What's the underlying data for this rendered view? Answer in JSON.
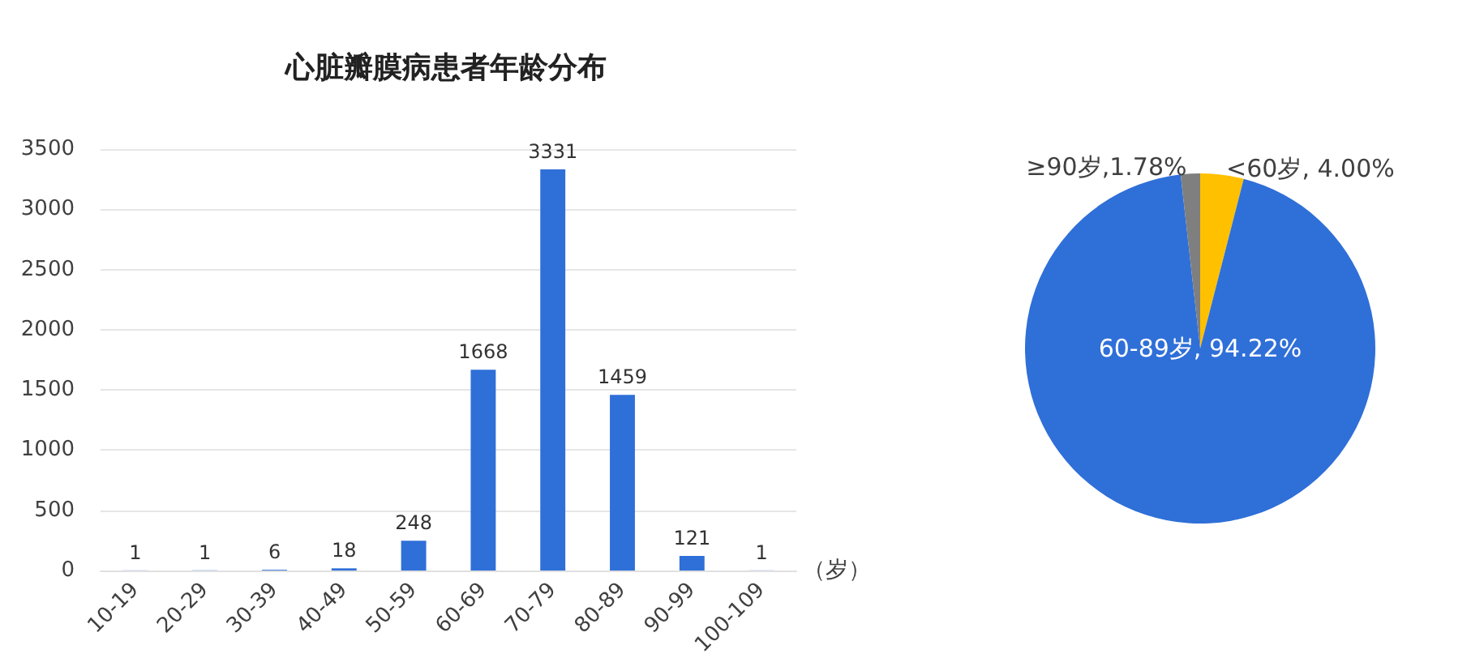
{
  "chart_data": [
    {
      "type": "bar",
      "title": "心脏瓣膜病患者年龄分布",
      "xlabel": "（岁）",
      "categories": [
        "10-19",
        "20-29",
        "30-39",
        "40-49",
        "50-59",
        "60-69",
        "70-79",
        "80-89",
        "90-99",
        "100-109"
      ],
      "values": [
        1,
        1,
        6,
        18,
        248,
        1668,
        3331,
        1459,
        121,
        1
      ],
      "color": "#2f6fd8",
      "ylim": [
        0,
        3500
      ],
      "yticks": [
        0,
        500,
        1000,
        1500,
        2000,
        2500,
        3000,
        3500
      ],
      "grid": "y",
      "data_labels": true
    },
    {
      "type": "pie",
      "categories": [
        "<60岁",
        "60-89岁",
        "≥90岁"
      ],
      "values": [
        4.0,
        94.22,
        1.78
      ],
      "colors": [
        "#ffc000",
        "#2f6fd8",
        "#7f7f7f"
      ],
      "value_labels": [
        ", 4.00%",
        ", 94.22%",
        ",1.78%"
      ]
    }
  ]
}
